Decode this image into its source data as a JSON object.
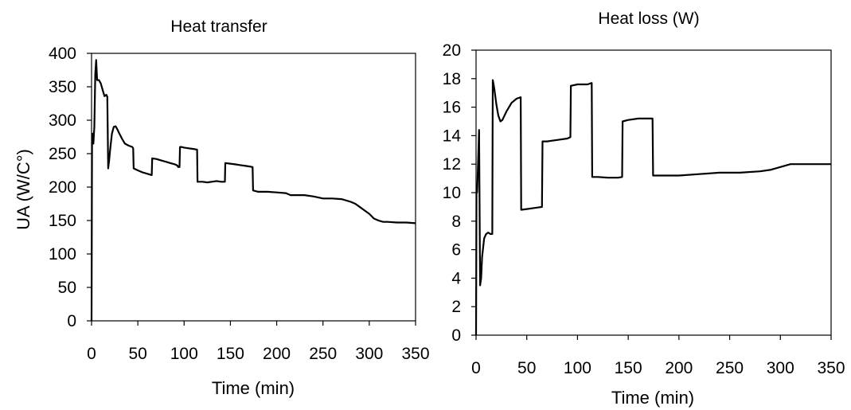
{
  "chart_data": [
    {
      "type": "line",
      "title": "Heat transfer",
      "xlabel": "Time (min)",
      "ylabel": "UA (W/C°)",
      "xlim": [
        0,
        350
      ],
      "ylim": [
        0,
        400
      ],
      "xticks": [
        "0",
        "50",
        "100",
        "150",
        "200",
        "250",
        "300",
        "350"
      ],
      "yticks": [
        "0",
        "50",
        "100",
        "150",
        "200",
        "250",
        "300",
        "350",
        "400"
      ],
      "grid": false,
      "series": [
        {
          "x": [
            0,
            0.5,
            1,
            2,
            3,
            4,
            5,
            6,
            8,
            10,
            12,
            14,
            15,
            16,
            17,
            18,
            19,
            20,
            22,
            24,
            26,
            28,
            30,
            33,
            36,
            40,
            44,
            45,
            45.5,
            50,
            55,
            60,
            65,
            65.5,
            70,
            75,
            80,
            85,
            90,
            93,
            93.5,
            95,
            95.5,
            97,
            100,
            105,
            110,
            114,
            114.5,
            120,
            125,
            130,
            135,
            140,
            144,
            144.5,
            150,
            155,
            160,
            165,
            170,
            174,
            174.5,
            180,
            190,
            200,
            210,
            215,
            220,
            230,
            240,
            250,
            260,
            270,
            280,
            285,
            290,
            295,
            300,
            305,
            310,
            315,
            320,
            330,
            340,
            350
          ],
          "y": [
            0,
            265,
            280,
            265,
            290,
            370,
            390,
            360,
            360,
            355,
            345,
            336,
            337,
            338,
            335,
            228,
            240,
            255,
            280,
            290,
            291,
            286,
            280,
            272,
            265,
            262,
            260,
            258,
            228,
            225,
            222,
            220,
            218,
            243,
            242,
            240,
            238,
            236,
            234,
            232,
            230,
            230,
            260,
            260,
            259,
            258,
            257,
            256,
            208,
            208,
            207,
            208,
            209,
            208,
            208,
            236,
            235,
            234,
            233,
            232,
            231,
            230,
            195,
            193,
            193,
            192,
            191,
            188,
            188,
            188,
            186,
            183,
            183,
            182,
            178,
            175,
            170,
            165,
            160,
            153,
            150,
            148,
            148,
            147,
            147,
            146
          ]
        }
      ]
    },
    {
      "type": "line",
      "title": "Heat loss (W)",
      "xlabel": "Time (min)",
      "ylabel": "",
      "xlim": [
        0,
        350
      ],
      "ylim": [
        0,
        20
      ],
      "xticks": [
        "0",
        "50",
        "100",
        "150",
        "200",
        "250",
        "300",
        "350"
      ],
      "yticks": [
        "0",
        "2",
        "4",
        "6",
        "8",
        "10",
        "12",
        "14",
        "16",
        "18",
        "20"
      ],
      "grid": false,
      "series": [
        {
          "x": [
            0,
            0.5,
            1,
            2,
            3,
            4,
            5,
            6,
            8,
            10,
            12,
            14,
            15,
            16,
            16.5,
            17,
            18,
            20,
            22,
            24,
            26,
            30,
            35,
            40,
            44,
            44.5,
            50,
            55,
            60,
            65,
            65.5,
            70,
            80,
            90,
            93,
            93.5,
            100,
            110,
            114,
            114.5,
            120,
            130,
            140,
            144,
            144.5,
            150,
            160,
            170,
            174,
            174.5,
            180,
            200,
            220,
            240,
            260,
            280,
            290,
            300,
            310,
            320,
            330,
            340,
            350
          ],
          "y": [
            0,
            10.5,
            10.0,
            12.0,
            14.4,
            3.5,
            4.0,
            5.5,
            6.8,
            7.1,
            7.2,
            7.1,
            7.1,
            7.1,
            17.9,
            17.7,
            17.3,
            16.2,
            15.4,
            15.0,
            15.1,
            15.7,
            16.3,
            16.6,
            16.7,
            8.8,
            8.85,
            8.9,
            8.95,
            9.0,
            13.6,
            13.6,
            13.7,
            13.8,
            13.9,
            17.5,
            17.6,
            17.6,
            17.7,
            11.1,
            11.1,
            11.05,
            11.05,
            11.1,
            15.0,
            15.1,
            15.2,
            15.2,
            15.2,
            11.2,
            11.2,
            11.2,
            11.3,
            11.4,
            11.4,
            11.5,
            11.6,
            11.8,
            12.0,
            12.0,
            12.0,
            12.0,
            12.0
          ]
        }
      ]
    }
  ]
}
